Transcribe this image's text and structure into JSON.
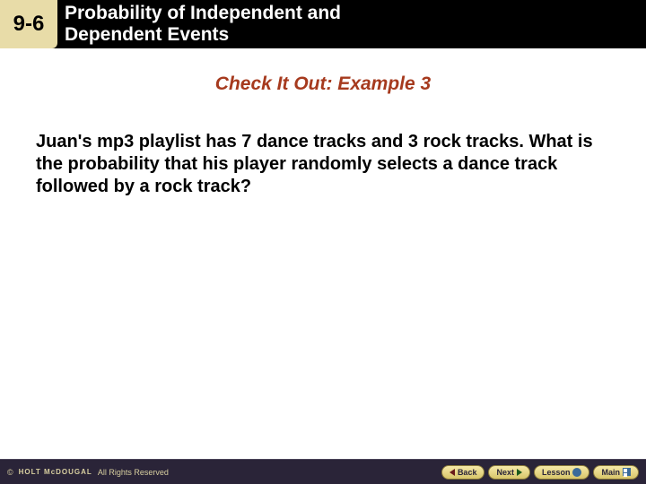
{
  "header": {
    "section_number": "9-6",
    "title_line1": "Probability of Independent and",
    "title_line2": "Dependent Events",
    "bg_color": "#000000",
    "number_bg": "#e8dca8"
  },
  "example": {
    "title": "Check It Out: Example 3",
    "title_color": "#a63a1e"
  },
  "body": {
    "text": "Juan's mp3 playlist has 7 dance tracks and 3 rock tracks. What is the probability that his player randomly selects a dance track followed by a rock track?"
  },
  "footer": {
    "publisher": "HOLT McDOUGAL",
    "rights": "All Rights Reserved",
    "bg_color": "#2a2438",
    "nav": {
      "back": "Back",
      "next": "Next",
      "lesson": "Lesson",
      "main": "Main"
    }
  }
}
